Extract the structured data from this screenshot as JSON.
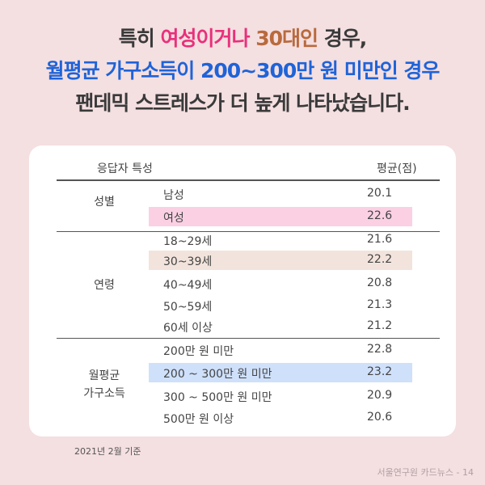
{
  "headline": {
    "line1": {
      "a": "특히 ",
      "b": "여성이거나",
      "c": " ",
      "d": "30대인",
      "e": " 경우,"
    },
    "line2": "월평균 가구소득이 200~300만 원 미만인 경우",
    "line3": "팬데믹 스트레스가 더 높게 나타났습니다."
  },
  "table": {
    "header_characteristic": "응답자 특성",
    "header_score": "평균(점)",
    "groups": {
      "gender": {
        "label": "성별",
        "rows": [
          {
            "label": "남성",
            "value": "20.1"
          },
          {
            "label": "여성",
            "value": "22.6"
          }
        ]
      },
      "age": {
        "label": "연령",
        "rows": [
          {
            "label": "18~29세",
            "value": "21.6"
          },
          {
            "label": "30~39세",
            "value": "22.2"
          },
          {
            "label": "40~49세",
            "value": "20.8"
          },
          {
            "label": "50~59세",
            "value": "21.3"
          },
          {
            "label": "60세 이상",
            "value": "21.2"
          }
        ]
      },
      "income": {
        "label_line1": "월평균",
        "label_line2": "가구소득",
        "rows": [
          {
            "label": "200만 원 미만",
            "value": "22.8"
          },
          {
            "label": "200 ~ 300만 원 미만",
            "value": "23.2"
          },
          {
            "label": "300 ~ 500만 원 미만",
            "value": "20.9"
          },
          {
            "label": "500만 원 이상",
            "value": "20.6"
          }
        ]
      }
    }
  },
  "footnote": "2021년 2월 기준",
  "credit": "서울연구원 카드뉴스 - 14",
  "colors": {
    "background": "#f4dfe1",
    "highlight_pink": "#e8317a",
    "highlight_brown": "#b96a3c",
    "highlight_blue": "#1f63d8",
    "row_pink": "#fbd0e3",
    "row_beige": "#f2e4dc",
    "row_blue": "#cfe0fb"
  }
}
